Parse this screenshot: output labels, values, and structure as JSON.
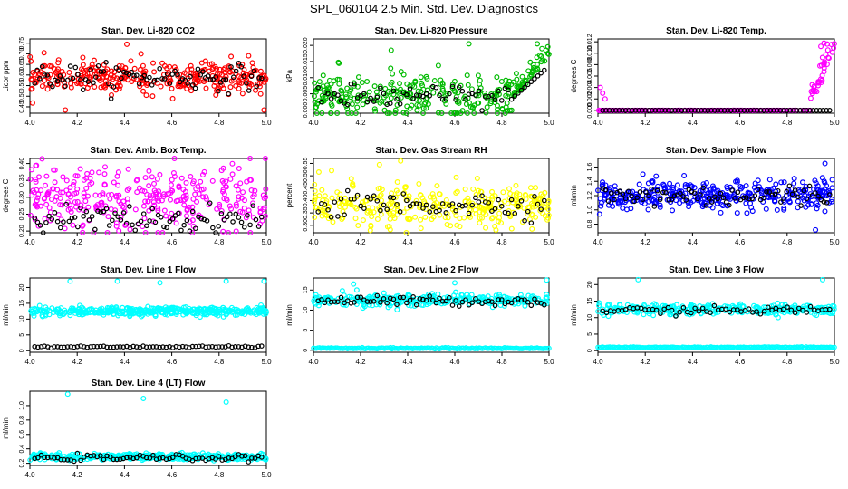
{
  "page_title": "SPL_060104  2.5 Min. Std. Dev. Diagnostics",
  "chart_data": [
    {
      "type": "scatter",
      "title": "Stan. Dev. Li-820 CO2",
      "ylabel": "Licor ppm",
      "xlim": [
        4.0,
        5.0
      ],
      "ylim": [
        0.42,
        0.77
      ],
      "xticks": [
        4.0,
        4.2,
        4.4,
        4.6,
        4.8,
        5.0
      ],
      "xtick_labels": [
        "4.0",
        "4.2",
        "4.4",
        "4.6",
        "4.8",
        "5.0"
      ],
      "yticks": [
        0.45,
        0.5,
        0.55,
        0.6,
        0.65,
        0.7,
        0.75
      ],
      "ytick_labels": [
        "0.45",
        "0.50",
        "0.55",
        "0.60",
        "0.65",
        "0.70",
        "0.75"
      ],
      "series_color": "#ff0000",
      "baseline": [
        0.59,
        0.035
      ],
      "n": 330,
      "n_black": 90,
      "black_sd": 0.03,
      "outliers": [
        [
          4.06,
          0.705
        ],
        [
          4.41,
          0.745
        ],
        [
          4.47,
          0.7
        ],
        [
          4.99,
          0.435
        ],
        [
          4.15,
          0.435
        ]
      ]
    },
    {
      "type": "scatter",
      "title": "Stan. Dev. Li-820 Pressure",
      "ylabel": "kPa",
      "xlim": [
        4.0,
        5.0
      ],
      "ylim": [
        -0.001,
        0.022
      ],
      "xticks": [
        4.0,
        4.2,
        4.4,
        4.6,
        4.8,
        5.0
      ],
      "xtick_labels": [
        "4.0",
        "4.2",
        "4.4",
        "4.6",
        "4.8",
        "5.0"
      ],
      "yticks": [
        0,
        0.005,
        0.01,
        0.015,
        0.02
      ],
      "ytick_labels": [
        "0.000",
        "0.005",
        "0.010",
        "0.015",
        "0.020"
      ],
      "series_color": "#00bb00",
      "baseline": [
        0.004,
        0.0035
      ],
      "n": 330,
      "n_black": 70,
      "black_sd": 0.002,
      "ramp": {
        "from": 4.85,
        "to": 5.0,
        "level": 0.012
      },
      "outliers": [
        [
          4.33,
          0.0185
        ],
        [
          4.66,
          0.0205
        ],
        [
          4.95,
          0.0205
        ],
        [
          4.97,
          0.019
        ]
      ]
    },
    {
      "type": "scatter",
      "title": "Stan. Dev. Li-820 Temp.",
      "ylabel": "degrees C",
      "xlim": [
        4.0,
        5.0
      ],
      "ylim": [
        -0.0005,
        0.0125
      ],
      "xticks": [
        4.0,
        4.2,
        4.4,
        4.6,
        4.8,
        5.0
      ],
      "xtick_labels": [
        "4.0",
        "4.2",
        "4.4",
        "4.6",
        "4.8",
        "5.0"
      ],
      "yticks": [
        0,
        0.002,
        0.004,
        0.006,
        0.008,
        0.01,
        0.012
      ],
      "ytick_labels": [
        "0.000",
        "0.002",
        "0.004",
        "0.006",
        "0.008",
        "0.010",
        "0.012"
      ],
      "series_color": "#ff00ff",
      "baseline": [
        0.0,
        0.0
      ],
      "n": 260,
      "n_black": 70,
      "black_sd": 0.0,
      "ramp": {
        "from": 4.9,
        "to": 5.0,
        "level": 0.011
      },
      "outliers": [
        [
          4.01,
          0.004
        ],
        [
          4.02,
          0.003
        ],
        [
          4.03,
          0.002
        ]
      ]
    },
    {
      "type": "scatter",
      "title": "Stan. Dev. Amb. Box Temp.",
      "ylabel": "degrees C",
      "xlim": [
        4.0,
        5.0
      ],
      "ylim": [
        0.195,
        0.415
      ],
      "xticks": [
        4.0,
        4.2,
        4.4,
        4.6,
        4.8,
        5.0
      ],
      "xtick_labels": [
        "4.0",
        "4.2",
        "4.4",
        "4.6",
        "4.8",
        "5.0"
      ],
      "yticks": [
        0.2,
        0.25,
        0.3,
        0.35,
        0.4
      ],
      "ytick_labels": [
        "0.20",
        "0.25",
        "0.30",
        "0.35",
        "0.40"
      ],
      "series_color": "#ff00ff",
      "baseline": [
        0.3,
        0.05
      ],
      "n": 330,
      "n_black": 80,
      "black_sd": 0.02,
      "black_center": 0.235,
      "outliers": []
    },
    {
      "type": "scatter",
      "title": "Stan. Dev. Gas Stream RH",
      "ylabel": "percent",
      "xlim": [
        4.0,
        5.0
      ],
      "ylim": [
        0.27,
        0.57
      ],
      "xticks": [
        4.0,
        4.2,
        4.4,
        4.6,
        4.8,
        5.0
      ],
      "xtick_labels": [
        "4.0",
        "4.2",
        "4.4",
        "4.6",
        "4.8",
        "5.0"
      ],
      "yticks": [
        0.3,
        0.35,
        0.4,
        0.45,
        0.5,
        0.55
      ],
      "ytick_labels": [
        "0.30",
        "0.35",
        "0.40",
        "0.45",
        "0.50",
        "0.55"
      ],
      "series_color": "#ffff00",
      "baseline": [
        0.385,
        0.04
      ],
      "n": 330,
      "n_black": 70,
      "black_sd": 0.025,
      "outliers": [
        [
          4.28,
          0.545
        ],
        [
          4.37,
          0.56
        ]
      ]
    },
    {
      "type": "scatter",
      "title": "Stan. Dev. Sample Flow",
      "ylabel": "ml/min",
      "xlim": [
        4.0,
        5.0
      ],
      "ylim": [
        0.68,
        1.72
      ],
      "xticks": [
        4.0,
        4.2,
        4.4,
        4.6,
        4.8,
        5.0
      ],
      "xtick_labels": [
        "4.0",
        "4.2",
        "4.4",
        "4.6",
        "4.8",
        "5.0"
      ],
      "yticks": [
        0.8,
        1.0,
        1.2,
        1.4,
        1.6
      ],
      "ytick_labels": [
        "0.8",
        "1.0",
        "1.2",
        "1.4",
        "1.6"
      ],
      "series_color": "#0000ff",
      "baseline": [
        1.2,
        0.1
      ],
      "n": 380,
      "n_black": 80,
      "black_sd": 0.08,
      "outliers": [
        [
          4.96,
          1.65
        ],
        [
          4.92,
          0.72
        ],
        [
          4.19,
          1.5
        ]
      ]
    },
    {
      "type": "scatter",
      "title": "Stan. Dev. Line 1 Flow",
      "ylabel": "ml/min",
      "xlim": [
        4.0,
        5.0
      ],
      "ylim": [
        -0.5,
        23
      ],
      "xticks": [
        4.0,
        4.2,
        4.4,
        4.6,
        4.8,
        5.0
      ],
      "xtick_labels": [
        "4.0",
        "4.2",
        "4.4",
        "4.6",
        "4.8",
        "5.0"
      ],
      "yticks": [
        0,
        5,
        10,
        15,
        20
      ],
      "ytick_labels": [
        "0",
        "5",
        "10",
        "15",
        "20"
      ],
      "series_color": "#00ffff",
      "baseline": [
        12.5,
        0.7
      ],
      "n": 400,
      "n_black": 70,
      "black_sd": 0.15,
      "black_center": 1.2,
      "low_band": null,
      "outliers": [
        [
          4.17,
          22
        ],
        [
          4.37,
          22
        ],
        [
          4.83,
          22
        ],
        [
          4.99,
          22
        ],
        [
          4.55,
          21.5
        ]
      ]
    },
    {
      "type": "scatter",
      "title": "Stan. Dev. Line 2 Flow",
      "ylabel": "ml/min",
      "xlim": [
        4.0,
        5.0
      ],
      "ylim": [
        -0.5,
        18
      ],
      "xticks": [
        4.0,
        4.2,
        4.4,
        4.6,
        4.8,
        5.0
      ],
      "xtick_labels": [
        "4.0",
        "4.2",
        "4.4",
        "4.6",
        "4.8",
        "5.0"
      ],
      "yticks": [
        0,
        5,
        10,
        15
      ],
      "ytick_labels": [
        "0",
        "5",
        "10",
        "15"
      ],
      "series_color": "#00ffff",
      "baseline": [
        12.5,
        0.7
      ],
      "n": 300,
      "n_black": 70,
      "black_sd": 0.6,
      "black_center": 12.3,
      "low_band": 0.5,
      "outliers": [
        [
          4.17,
          16.5
        ],
        [
          4.6,
          16.8
        ],
        [
          4.99,
          17.5
        ]
      ]
    },
    {
      "type": "scatter",
      "title": "Stan. Dev. Line 3 Flow",
      "ylabel": "ml/min",
      "xlim": [
        4.0,
        5.0
      ],
      "ylim": [
        -0.5,
        22
      ],
      "xticks": [
        4.0,
        4.2,
        4.4,
        4.6,
        4.8,
        5.0
      ],
      "xtick_labels": [
        "4.0",
        "4.2",
        "4.4",
        "4.6",
        "4.8",
        "5.0"
      ],
      "yticks": [
        0,
        5,
        10,
        15,
        20
      ],
      "ytick_labels": [
        "0",
        "5",
        "10",
        "15",
        "20"
      ],
      "series_color": "#00ffff",
      "baseline": [
        12.5,
        0.8
      ],
      "n": 300,
      "n_black": 60,
      "black_sd": 0.6,
      "black_center": 12.2,
      "low_band": 1.0,
      "outliers": [
        [
          4.17,
          21.5
        ],
        [
          4.95,
          21.5
        ]
      ]
    },
    {
      "type": "scatter",
      "title": "Stan. Dev. Line 4 (LT) Flow",
      "ylabel": "ml/min",
      "xlim": [
        4.0,
        5.0
      ],
      "ylim": [
        0.17,
        1.2
      ],
      "xticks": [
        4.0,
        4.2,
        4.4,
        4.6,
        4.8,
        5.0
      ],
      "xtick_labels": [
        "4.0",
        "4.2",
        "4.4",
        "4.6",
        "4.8",
        "5.0"
      ],
      "yticks": [
        0.2,
        0.4,
        0.6,
        0.8,
        1.0
      ],
      "ytick_labels": [
        "0.2",
        "0.4",
        "0.6",
        "0.8",
        "1.0"
      ],
      "series_color": "#00ffff",
      "baseline": [
        0.29,
        0.02
      ],
      "n": 380,
      "n_black": 70,
      "black_sd": 0.02,
      "black_center": 0.275,
      "low_band": null,
      "outliers": [
        [
          4.16,
          1.16
        ],
        [
          4.48,
          1.1
        ],
        [
          4.83,
          1.05
        ]
      ]
    }
  ]
}
